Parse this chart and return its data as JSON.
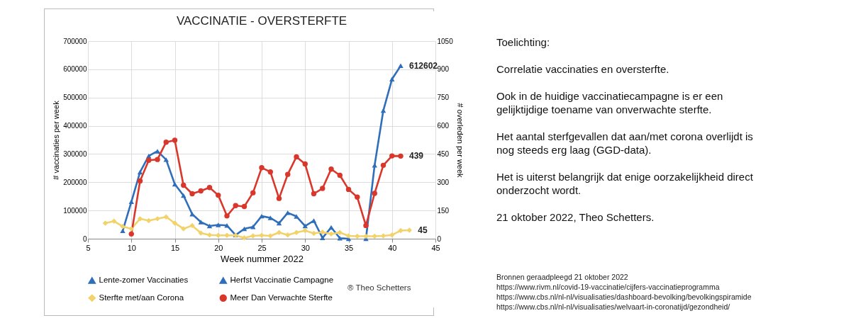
{
  "chart_data": {
    "type": "line",
    "title": "VACCINATIE - OVERSTERFTE",
    "xlabel": "Week nummer  2022",
    "ylabel": "# vaccinaties per week",
    "y2label": "# overleden per week",
    "xlim": [
      5,
      45
    ],
    "xticks": [
      5,
      10,
      15,
      20,
      25,
      30,
      35,
      40,
      45
    ],
    "ylim": [
      0,
      700000
    ],
    "yticks": [
      0,
      100000,
      200000,
      300000,
      400000,
      500000,
      600000,
      700000
    ],
    "y2lim": [
      0,
      1050
    ],
    "y2ticks": [
      0,
      150,
      300,
      450,
      600,
      750,
      900,
      1050
    ],
    "grid": true,
    "legend": "bottom",
    "series": [
      {
        "name": "Lente-zomer Vaccinaties",
        "color": "#2f6eba",
        "marker": "triangle",
        "x": [
          9,
          10,
          11,
          12,
          13,
          14,
          15,
          16,
          17,
          18,
          19,
          20,
          21,
          22,
          23,
          24,
          25,
          26,
          27,
          28,
          29,
          30,
          31,
          32,
          33,
          34,
          35
        ],
        "values": [
          28000,
          131000,
          236000,
          293000,
          310000,
          280000,
          193000,
          153000,
          87000,
          59000,
          45000,
          49000,
          47000,
          13000,
          35000,
          42000,
          80000,
          74000,
          55000,
          92000,
          79000,
          45000,
          64000,
          3000,
          40000,
          2000,
          0
        ]
      },
      {
        "name": "Herfst Vaccinatie Campagne",
        "color": "#2f6eba",
        "marker": "triangle",
        "x": [
          37,
          38,
          39,
          40,
          41
        ],
        "values": [
          0,
          260000,
          454000,
          565000,
          612602
        ],
        "value_labels": [
          null,
          null,
          null,
          null,
          "612602"
        ]
      },
      {
        "name": "Sterfte met/aan Corona",
        "color": "#f2d36b",
        "marker": "diamond",
        "axis": "y2",
        "x": [
          7,
          8,
          9,
          10,
          11,
          12,
          13,
          14,
          15,
          16,
          17,
          18,
          19,
          20,
          21,
          22,
          23,
          24,
          25,
          26,
          27,
          28,
          29,
          30,
          31,
          32,
          33,
          34,
          35,
          36,
          37,
          38,
          39,
          40,
          41,
          42
        ],
        "values": [
          83,
          93,
          65,
          53,
          106,
          96,
          106,
          116,
          83,
          53,
          70,
          30,
          20,
          18,
          18,
          18,
          5,
          15,
          18,
          15,
          33,
          20,
          33,
          43,
          28,
          35,
          25,
          33,
          15,
          13,
          13,
          13,
          15,
          20,
          43,
          45
        ],
        "value_labels": [
          null,
          null,
          null,
          null,
          null,
          null,
          null,
          null,
          null,
          null,
          null,
          null,
          null,
          null,
          null,
          null,
          null,
          null,
          null,
          null,
          null,
          null,
          null,
          null,
          null,
          null,
          null,
          null,
          null,
          null,
          null,
          null,
          null,
          null,
          null,
          "45"
        ]
      },
      {
        "name": "Meer Dan Verwachte Sterfte",
        "color": "#d9372b",
        "marker": "circle",
        "axis": "y2",
        "x": [
          10,
          11,
          12,
          13,
          14,
          15,
          16,
          17,
          18,
          19,
          20,
          21,
          22,
          23,
          24,
          25,
          26,
          27,
          28,
          29,
          30,
          31,
          32,
          33,
          34,
          35,
          36,
          37,
          38,
          39,
          40,
          41
        ],
        "values": [
          25,
          307,
          417,
          421,
          513,
          523,
          284,
          239,
          254,
          272,
          231,
          121,
          176,
          171,
          244,
          377,
          355,
          214,
          342,
          435,
          397,
          239,
          267,
          370,
          337,
          262,
          221,
          70,
          241,
          390,
          440,
          439
        ],
        "value_labels": [
          null,
          null,
          null,
          null,
          null,
          null,
          null,
          null,
          null,
          null,
          null,
          null,
          null,
          null,
          null,
          null,
          null,
          null,
          null,
          null,
          null,
          null,
          null,
          null,
          null,
          null,
          null,
          null,
          null,
          null,
          null,
          "439"
        ]
      }
    ],
    "annotations": [
      "Toelichting:",
      "Correlatie vaccinaties en oversterfte.",
      "Ook in de huidige vaccinatiecampagne is er een gelijktijdige toename van onverwachte sterfte.",
      "Het aantal sterfgevallen dat aan/met corona overlijdt is nog steeds erg laag (GGD-data).",
      "Het is uiterst belangrijk dat enige oorzakelijkheid direct onderzocht wordt.",
      "21 oktober 2022, Theo Schetters.",
      "Bronnen geraadpleegd 21 oktober 2022",
      "https://www.rivm.nl/covid-19-vaccinatie/cijfers-vaccinatieprogramma",
      "https://www.cbs.nl/nl-nl/visualisaties/dashboard-bevolking/bevolkingspiramide",
      "https://www.cbs.nl/nl-nl/visualisaties/welvaart-in-coronatijd/gezondheid/",
      "® Theo Schetters"
    ]
  }
}
